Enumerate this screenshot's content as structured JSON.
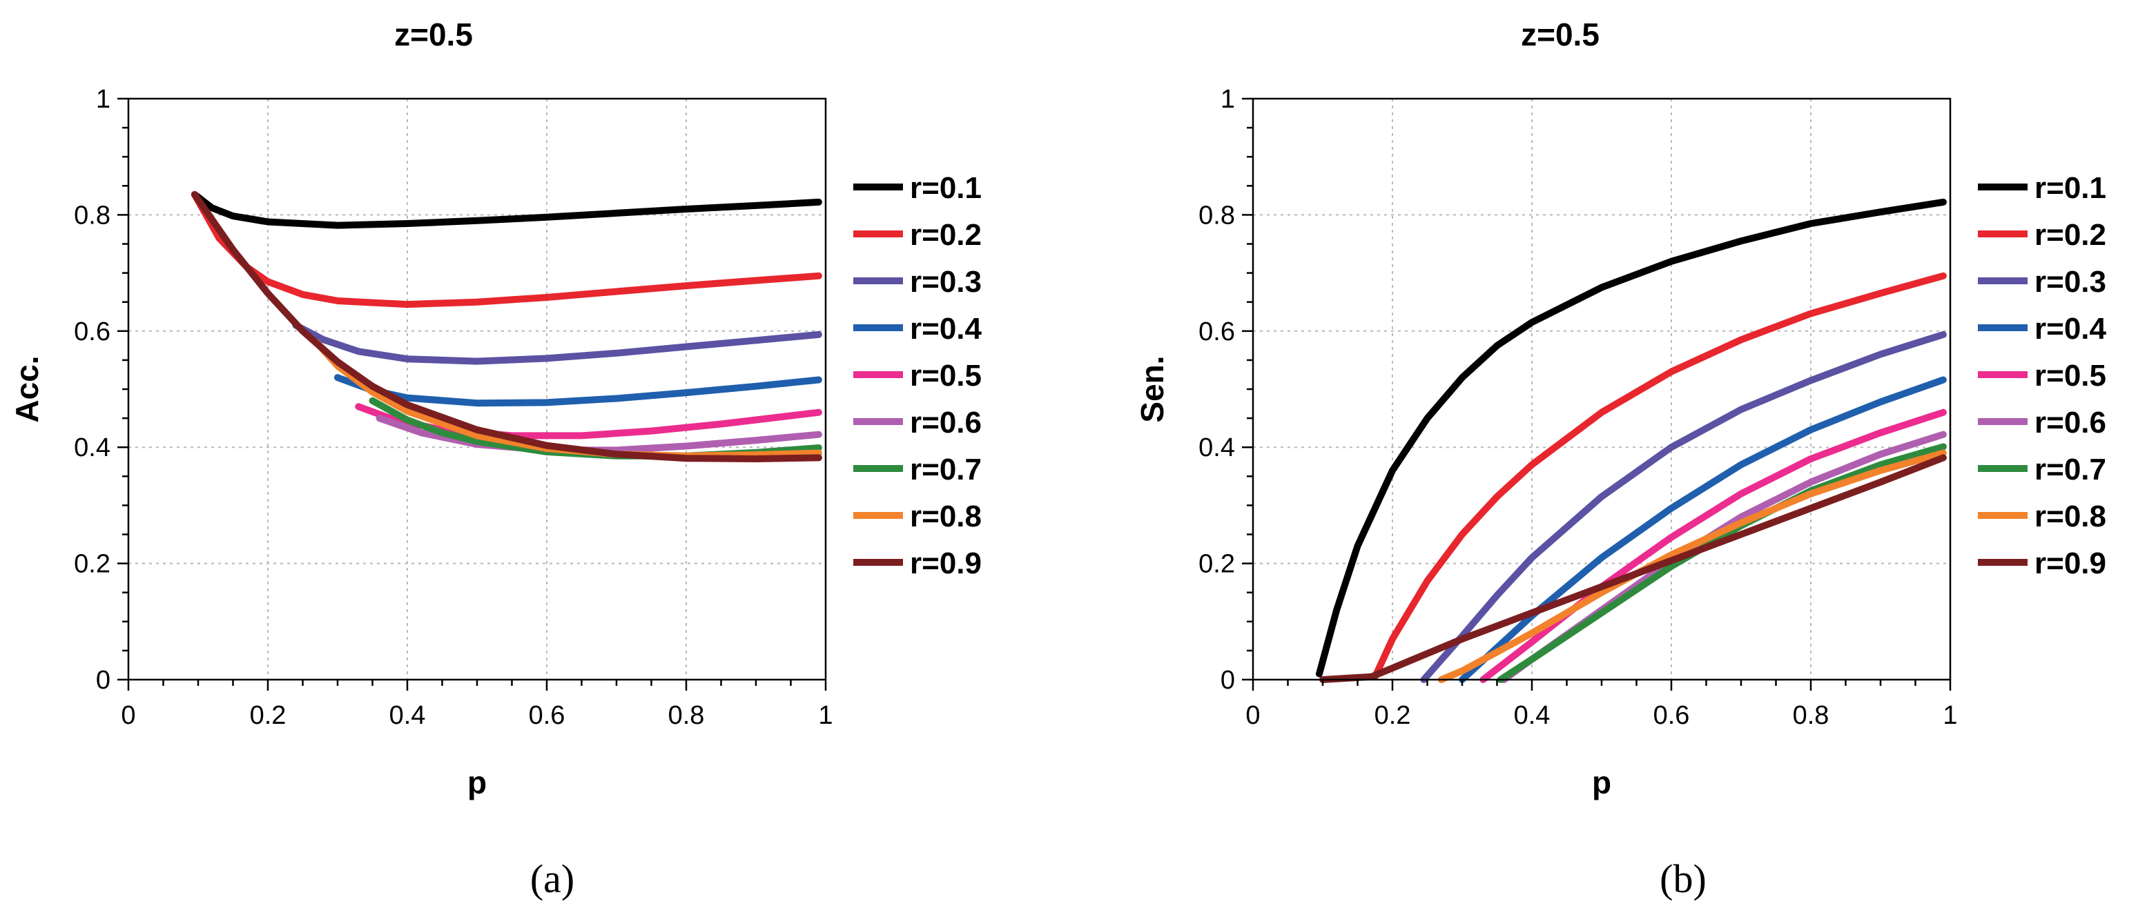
{
  "chart_data": [
    {
      "type": "line",
      "panel": "(a)",
      "title": "z=0.5",
      "xlabel": "p",
      "ylabel": "Acc.",
      "xlim": [
        0,
        1
      ],
      "ylim": [
        0,
        1
      ],
      "grid": true,
      "legend_position": "right",
      "xticks": [
        "0",
        "0.2",
        "0.4",
        "0.6",
        "0.8",
        "1"
      ],
      "yticks": [
        "0",
        "0.2",
        "0.4",
        "0.6",
        "0.8",
        "1"
      ],
      "series": [
        {
          "name": "r=0.1",
          "color": "#000000",
          "points": [
            [
              0.095,
              0.835
            ],
            [
              0.12,
              0.812
            ],
            [
              0.15,
              0.798
            ],
            [
              0.2,
              0.788
            ],
            [
              0.3,
              0.782
            ],
            [
              0.4,
              0.785
            ],
            [
              0.5,
              0.79
            ],
            [
              0.6,
              0.796
            ],
            [
              0.7,
              0.803
            ],
            [
              0.8,
              0.81
            ],
            [
              0.9,
              0.816
            ],
            [
              0.99,
              0.822
            ]
          ]
        },
        {
          "name": "r=0.2",
          "color": "#e8262d",
          "points": [
            [
              0.095,
              0.835
            ],
            [
              0.13,
              0.76
            ],
            [
              0.17,
              0.71
            ],
            [
              0.2,
              0.685
            ],
            [
              0.25,
              0.663
            ],
            [
              0.3,
              0.652
            ],
            [
              0.4,
              0.646
            ],
            [
              0.5,
              0.65
            ],
            [
              0.6,
              0.658
            ],
            [
              0.7,
              0.668
            ],
            [
              0.8,
              0.678
            ],
            [
              0.9,
              0.687
            ],
            [
              0.99,
              0.695
            ]
          ]
        },
        {
          "name": "r=0.3",
          "color": "#5b52a3",
          "points": [
            [
              0.24,
              0.61
            ],
            [
              0.28,
              0.585
            ],
            [
              0.33,
              0.565
            ],
            [
              0.4,
              0.552
            ],
            [
              0.5,
              0.548
            ],
            [
              0.6,
              0.553
            ],
            [
              0.7,
              0.562
            ],
            [
              0.8,
              0.573
            ],
            [
              0.9,
              0.584
            ],
            [
              0.99,
              0.594
            ]
          ]
        },
        {
          "name": "r=0.4",
          "color": "#1f5fad",
          "points": [
            [
              0.3,
              0.52
            ],
            [
              0.35,
              0.498
            ],
            [
              0.4,
              0.485
            ],
            [
              0.5,
              0.476
            ],
            [
              0.6,
              0.477
            ],
            [
              0.7,
              0.484
            ],
            [
              0.8,
              0.494
            ],
            [
              0.9,
              0.505
            ],
            [
              0.99,
              0.516
            ]
          ]
        },
        {
          "name": "r=0.5",
          "color": "#ec2c8f",
          "points": [
            [
              0.33,
              0.47
            ],
            [
              0.38,
              0.448
            ],
            [
              0.45,
              0.43
            ],
            [
              0.55,
              0.42
            ],
            [
              0.65,
              0.42
            ],
            [
              0.75,
              0.428
            ],
            [
              0.85,
              0.44
            ],
            [
              0.92,
              0.45
            ],
            [
              0.99,
              0.46
            ]
          ]
        },
        {
          "name": "r=0.6",
          "color": "#b05fb0",
          "points": [
            [
              0.36,
              0.45
            ],
            [
              0.42,
              0.425
            ],
            [
              0.5,
              0.405
            ],
            [
              0.6,
              0.395
            ],
            [
              0.7,
              0.395
            ],
            [
              0.8,
              0.402
            ],
            [
              0.9,
              0.412
            ],
            [
              0.99,
              0.422
            ]
          ]
        },
        {
          "name": "r=0.7",
          "color": "#2e8b3e",
          "points": [
            [
              0.35,
              0.48
            ],
            [
              0.4,
              0.447
            ],
            [
              0.45,
              0.425
            ],
            [
              0.5,
              0.41
            ],
            [
              0.6,
              0.392
            ],
            [
              0.7,
              0.385
            ],
            [
              0.8,
              0.385
            ],
            [
              0.9,
              0.391
            ],
            [
              0.99,
              0.399
            ]
          ]
        },
        {
          "name": "r=0.8",
          "color": "#f2822b",
          "points": [
            [
              0.27,
              0.58
            ],
            [
              0.3,
              0.54
            ],
            [
              0.35,
              0.495
            ],
            [
              0.4,
              0.462
            ],
            [
              0.5,
              0.42
            ],
            [
              0.6,
              0.398
            ],
            [
              0.7,
              0.388
            ],
            [
              0.8,
              0.385
            ],
            [
              0.9,
              0.387
            ],
            [
              0.99,
              0.39
            ]
          ]
        },
        {
          "name": "r=0.9",
          "color": "#7b1e20",
          "points": [
            [
              0.095,
              0.835
            ],
            [
              0.15,
              0.74
            ],
            [
              0.2,
              0.665
            ],
            [
              0.25,
              0.6
            ],
            [
              0.3,
              0.547
            ],
            [
              0.35,
              0.505
            ],
            [
              0.4,
              0.473
            ],
            [
              0.5,
              0.43
            ],
            [
              0.6,
              0.403
            ],
            [
              0.7,
              0.388
            ],
            [
              0.8,
              0.381
            ],
            [
              0.9,
              0.38
            ],
            [
              0.99,
              0.382
            ]
          ]
        }
      ]
    },
    {
      "type": "line",
      "panel": "(b)",
      "title": "z=0.5",
      "xlabel": "p",
      "ylabel": "Sen.",
      "xlim": [
        0,
        1
      ],
      "ylim": [
        0,
        1
      ],
      "grid": true,
      "legend_position": "right",
      "xticks": [
        "0",
        "0.2",
        "0.4",
        "0.6",
        "0.8",
        "1"
      ],
      "yticks": [
        "0",
        "0.2",
        "0.4",
        "0.6",
        "0.8",
        "1"
      ],
      "series": [
        {
          "name": "r=0.1",
          "color": "#000000",
          "points": [
            [
              0.095,
              0.01
            ],
            [
              0.12,
              0.12
            ],
            [
              0.15,
              0.23
            ],
            [
              0.2,
              0.36
            ],
            [
              0.25,
              0.45
            ],
            [
              0.3,
              0.52
            ],
            [
              0.35,
              0.575
            ],
            [
              0.4,
              0.615
            ],
            [
              0.5,
              0.675
            ],
            [
              0.6,
              0.72
            ],
            [
              0.7,
              0.755
            ],
            [
              0.8,
              0.785
            ],
            [
              0.9,
              0.805
            ],
            [
              0.99,
              0.822
            ]
          ]
        },
        {
          "name": "r=0.2",
          "color": "#e8262d",
          "points": [
            [
              0.175,
              0.005
            ],
            [
              0.2,
              0.07
            ],
            [
              0.25,
              0.17
            ],
            [
              0.3,
              0.25
            ],
            [
              0.35,
              0.315
            ],
            [
              0.4,
              0.37
            ],
            [
              0.5,
              0.46
            ],
            [
              0.6,
              0.53
            ],
            [
              0.7,
              0.585
            ],
            [
              0.8,
              0.63
            ],
            [
              0.9,
              0.665
            ],
            [
              0.99,
              0.695
            ]
          ]
        },
        {
          "name": "r=0.3",
          "color": "#5b52a3",
          "points": [
            [
              0.245,
              0.0
            ],
            [
              0.3,
              0.075
            ],
            [
              0.35,
              0.145
            ],
            [
              0.4,
              0.21
            ],
            [
              0.5,
              0.315
            ],
            [
              0.6,
              0.4
            ],
            [
              0.7,
              0.465
            ],
            [
              0.8,
              0.515
            ],
            [
              0.9,
              0.56
            ],
            [
              0.99,
              0.594
            ]
          ]
        },
        {
          "name": "r=0.4",
          "color": "#1f5fad",
          "points": [
            [
              0.3,
              0.0
            ],
            [
              0.35,
              0.055
            ],
            [
              0.4,
              0.11
            ],
            [
              0.5,
              0.21
            ],
            [
              0.6,
              0.295
            ],
            [
              0.7,
              0.37
            ],
            [
              0.8,
              0.43
            ],
            [
              0.9,
              0.478
            ],
            [
              0.99,
              0.516
            ]
          ]
        },
        {
          "name": "r=0.5",
          "color": "#ec2c8f",
          "points": [
            [
              0.33,
              0.0
            ],
            [
              0.4,
              0.065
            ],
            [
              0.5,
              0.16
            ],
            [
              0.6,
              0.245
            ],
            [
              0.7,
              0.32
            ],
            [
              0.8,
              0.38
            ],
            [
              0.9,
              0.425
            ],
            [
              0.99,
              0.46
            ]
          ]
        },
        {
          "name": "r=0.6",
          "color": "#b05fb0",
          "points": [
            [
              0.36,
              0.0
            ],
            [
              0.4,
              0.035
            ],
            [
              0.5,
              0.12
            ],
            [
              0.6,
              0.205
            ],
            [
              0.7,
              0.28
            ],
            [
              0.8,
              0.34
            ],
            [
              0.9,
              0.388
            ],
            [
              0.99,
              0.422
            ]
          ]
        },
        {
          "name": "r=0.7",
          "color": "#2e8b3e",
          "points": [
            [
              0.355,
              0.0
            ],
            [
              0.4,
              0.035
            ],
            [
              0.5,
              0.115
            ],
            [
              0.6,
              0.195
            ],
            [
              0.7,
              0.265
            ],
            [
              0.8,
              0.325
            ],
            [
              0.9,
              0.37
            ],
            [
              0.99,
              0.401
            ]
          ]
        },
        {
          "name": "r=0.8",
          "color": "#f2822b",
          "points": [
            [
              0.27,
              0.0
            ],
            [
              0.3,
              0.015
            ],
            [
              0.4,
              0.08
            ],
            [
              0.5,
              0.15
            ],
            [
              0.6,
              0.215
            ],
            [
              0.7,
              0.27
            ],
            [
              0.8,
              0.32
            ],
            [
              0.9,
              0.36
            ],
            [
              0.99,
              0.39
            ]
          ]
        },
        {
          "name": "r=0.9",
          "color": "#7b1e20",
          "points": [
            [
              0.1,
              0.0
            ],
            [
              0.17,
              0.005
            ],
            [
              0.2,
              0.02
            ],
            [
              0.3,
              0.07
            ],
            [
              0.4,
              0.115
            ],
            [
              0.5,
              0.16
            ],
            [
              0.6,
              0.205
            ],
            [
              0.7,
              0.25
            ],
            [
              0.8,
              0.295
            ],
            [
              0.9,
              0.34
            ],
            [
              0.99,
              0.382
            ]
          ]
        }
      ]
    }
  ]
}
